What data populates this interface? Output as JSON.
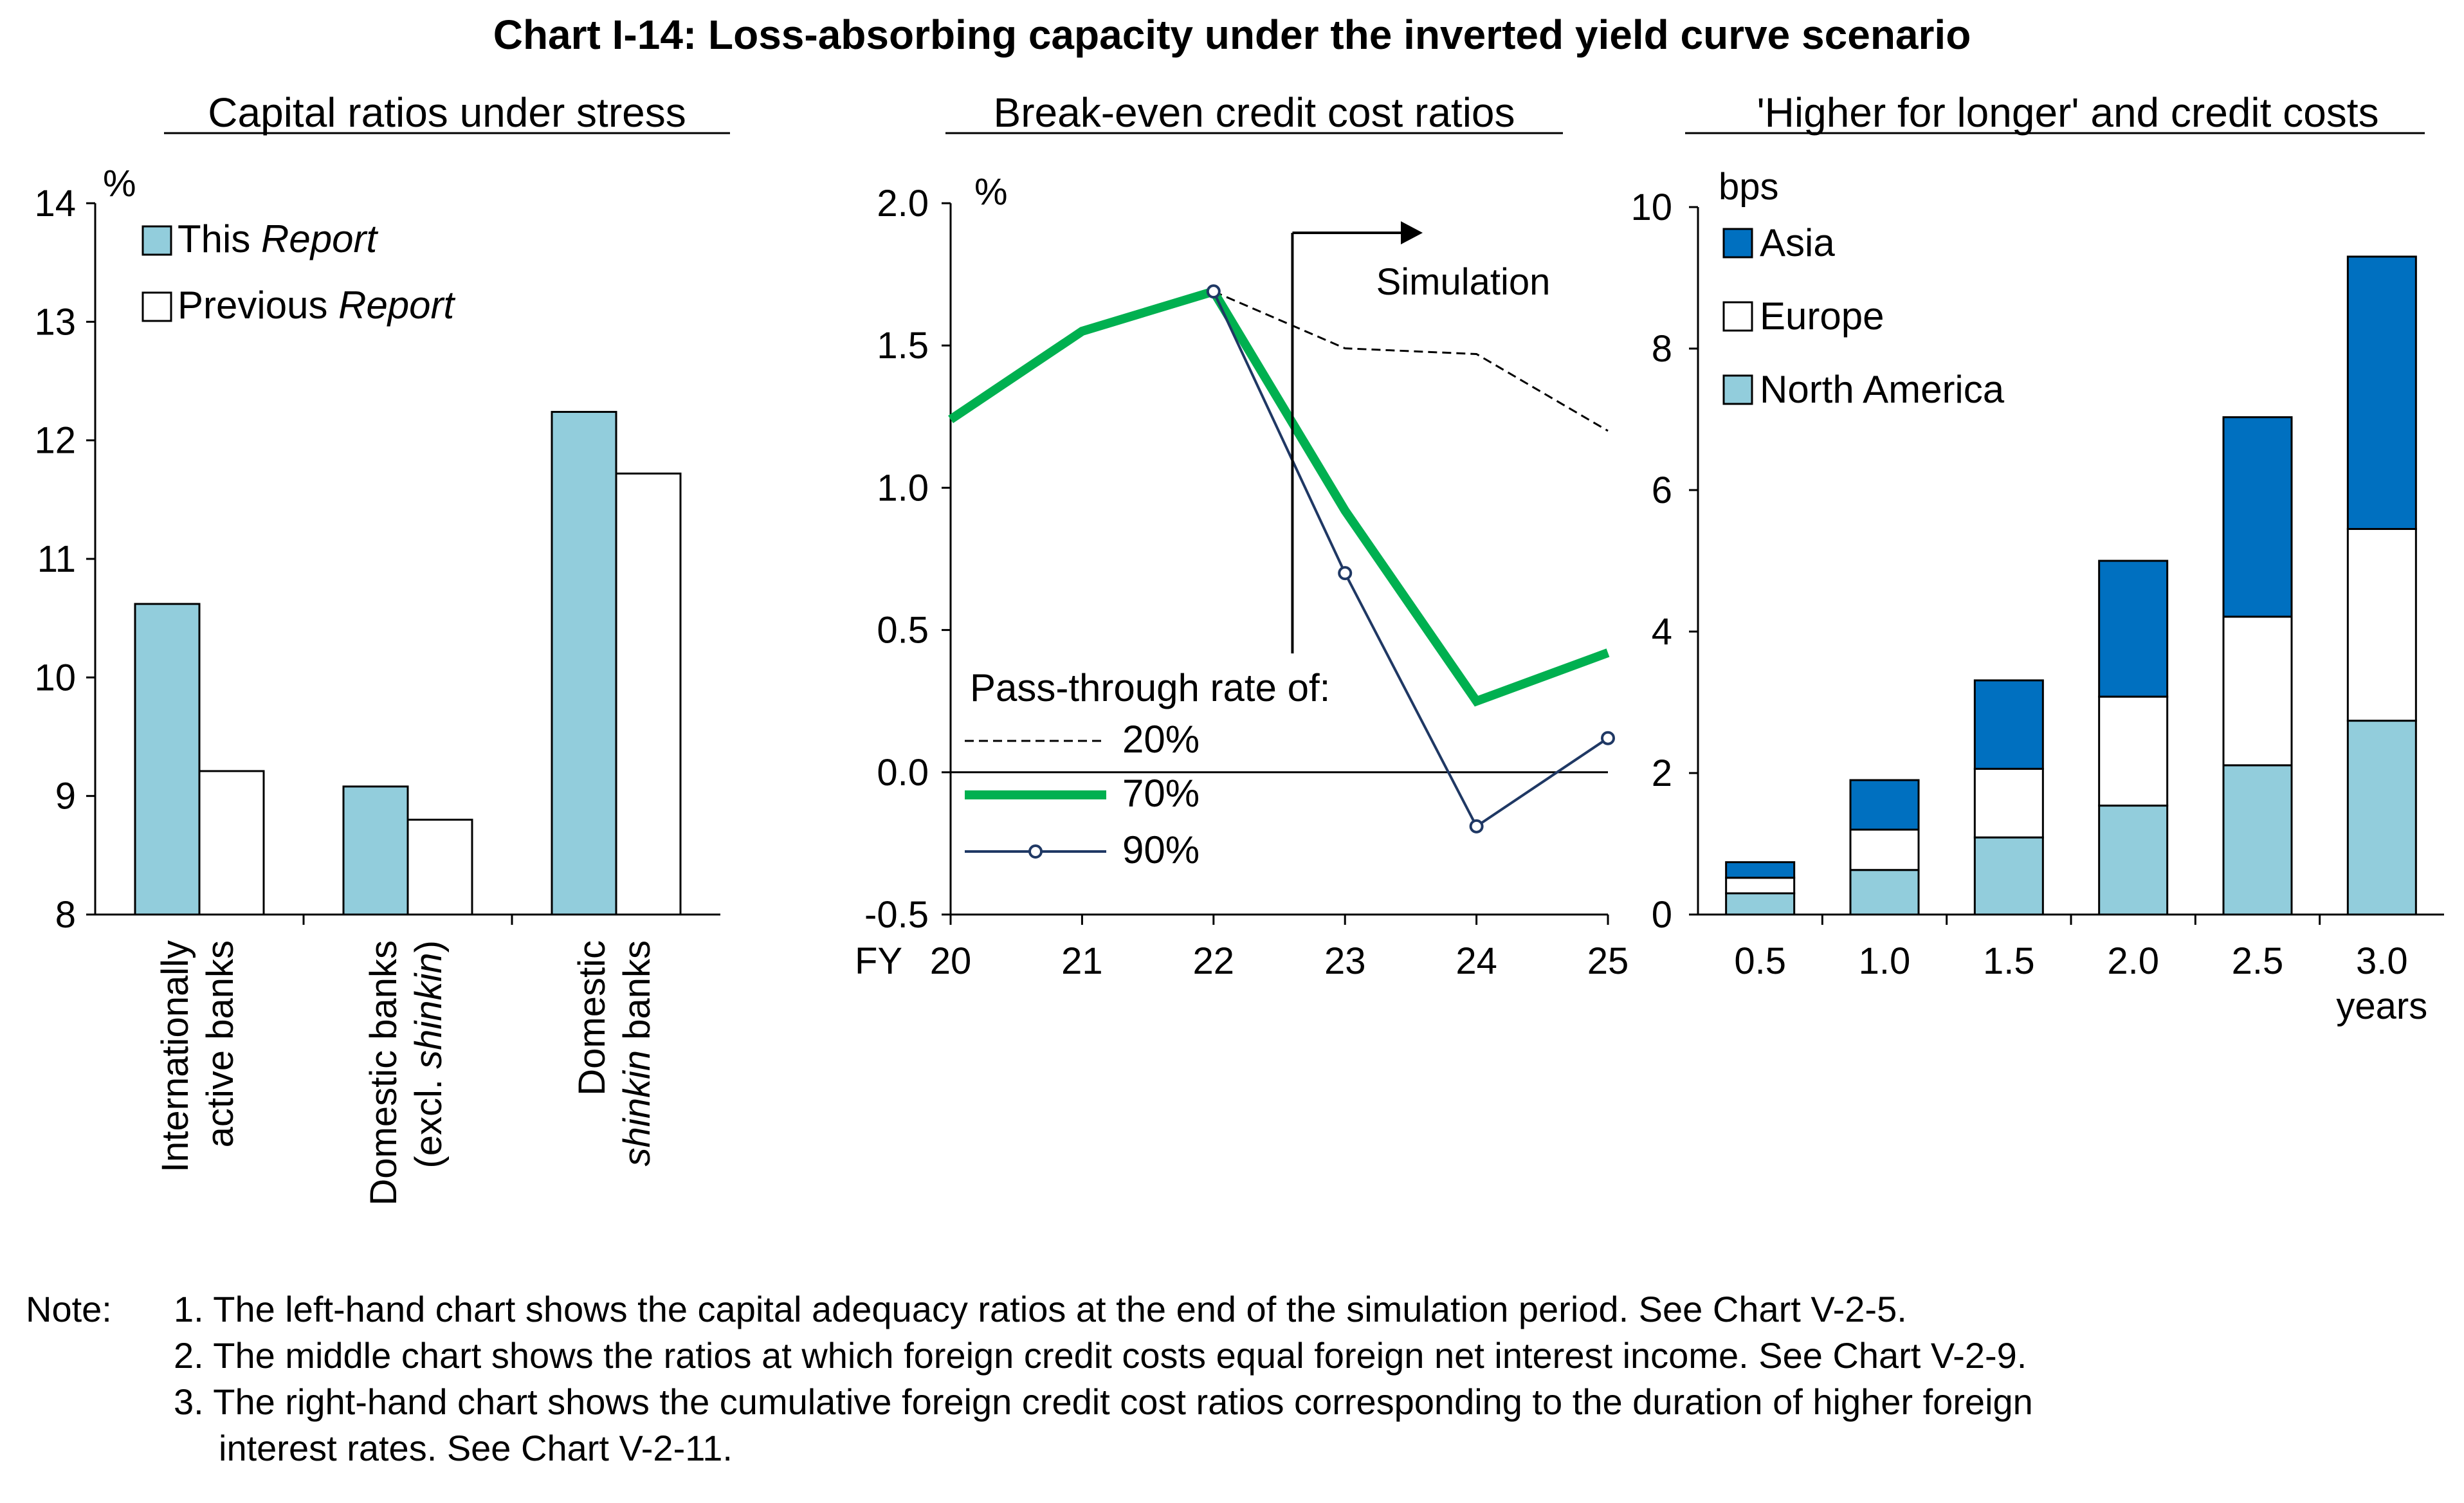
{
  "title": "Chart I-14: Loss-absorbing capacity under the inverted yield curve scenario",
  "colors": {
    "light_blue": "#92CDDC",
    "dark_blue": "#0070C0",
    "green": "#00B050",
    "navy": "#1F3864",
    "white": "#FFFFFF"
  },
  "panels": {
    "left": {
      "title": "Capital ratios under stress",
      "unit": "%",
      "chart_data": {
        "type": "bar",
        "categories": [
          "Internationally active banks",
          "Domestic banks (excl. shinkin)",
          "Domestic shinkin banks"
        ],
        "category_lines": [
          [
            {
              "t": "Internationally"
            },
            {
              "t": "active banks"
            }
          ],
          [
            {
              "t": "Domestic banks"
            },
            {
              "t": "(excl. "
            },
            {
              "t": "shinkin",
              "i": true
            },
            {
              "t": ")"
            }
          ],
          [
            {
              "t": "Domestic"
            },
            {
              "t": "shinkin",
              "i": true
            },
            {
              "t": " banks"
            }
          ]
        ],
        "series": [
          {
            "name": "This Report",
            "name_plain": "This ",
            "name_italic": "Report",
            "color": "#92CDDC",
            "values": [
              10.62,
              9.08,
              12.24
            ]
          },
          {
            "name": "Previous Report",
            "name_plain": "Previous ",
            "name_italic": "Report",
            "color": "#FFFFFF",
            "values": [
              9.21,
              8.8,
              11.72
            ]
          }
        ],
        "ylim": [
          8,
          14
        ],
        "yticks": [
          8,
          9,
          10,
          11,
          12,
          13,
          14
        ],
        "ylabel": "%",
        "legend": "top-left"
      }
    },
    "middle": {
      "title": "Break-even credit cost ratios",
      "unit": "%",
      "simulation_label": "Simulation",
      "legend_title": "Pass-through rate of:",
      "x_prefix": "FY",
      "chart_data": {
        "type": "line",
        "x": [
          "20",
          "21",
          "22",
          "23",
          "24",
          "25"
        ],
        "series": [
          {
            "name": "20%",
            "style": "dashed",
            "color": "#000000",
            "values": [
              null,
              null,
              1.69,
              1.49,
              1.47,
              1.2
            ]
          },
          {
            "name": "70%",
            "style": "thick",
            "color": "#00B050",
            "values": [
              1.24,
              1.55,
              1.69,
              0.92,
              0.25,
              0.42
            ]
          },
          {
            "name": "90%",
            "style": "marker",
            "color": "#1F3864",
            "values": [
              null,
              null,
              1.69,
              0.7,
              -0.19,
              0.12
            ]
          }
        ],
        "ylim": [
          -0.5,
          2.0
        ],
        "yticks": [
          "-0.5",
          "0.0",
          "0.5",
          "1.0",
          "1.5",
          "2.0"
        ],
        "simulation_start_x": 22.6,
        "legend": "bottom-left"
      }
    },
    "right": {
      "title": "'Higher for longer' and credit costs",
      "unit": "bps",
      "x_unit": "years",
      "chart_data": {
        "type": "bar",
        "stacked": true,
        "categories": [
          "0.5",
          "1.0",
          "1.5",
          "2.0",
          "2.5",
          "3.0"
        ],
        "series": [
          {
            "name": "North America",
            "color": "#92CDDC",
            "values": [
              0.3,
              0.63,
              1.09,
              1.54,
              2.11,
              2.74
            ]
          },
          {
            "name": "Europe",
            "color": "#FFFFFF",
            "values": [
              0.22,
              0.57,
              0.97,
              1.54,
              2.1,
              2.71
            ]
          },
          {
            "name": "Asia",
            "color": "#0070C0",
            "values": [
              0.22,
              0.7,
              1.25,
              1.92,
              2.82,
              3.85
            ]
          }
        ],
        "ylim": [
          0,
          10
        ],
        "yticks": [
          "0",
          "2",
          "4",
          "6",
          "8",
          "10"
        ],
        "legend_order": [
          "Asia",
          "Europe",
          "North America"
        ],
        "legend": "top-left"
      }
    }
  },
  "notes": {
    "label": "Note:",
    "items": [
      "1. The left-hand chart shows the capital adequacy ratios at the end of the simulation period. See Chart V-2-5.",
      "2. The middle chart shows the ratios at which foreign credit costs equal foreign net interest income. See Chart V-2-9.",
      "3. The right-hand chart shows the cumulative foreign credit cost ratios corresponding to the duration of higher foreign"
    ],
    "item3_cont": "interest rates. See Chart V-2-11."
  }
}
